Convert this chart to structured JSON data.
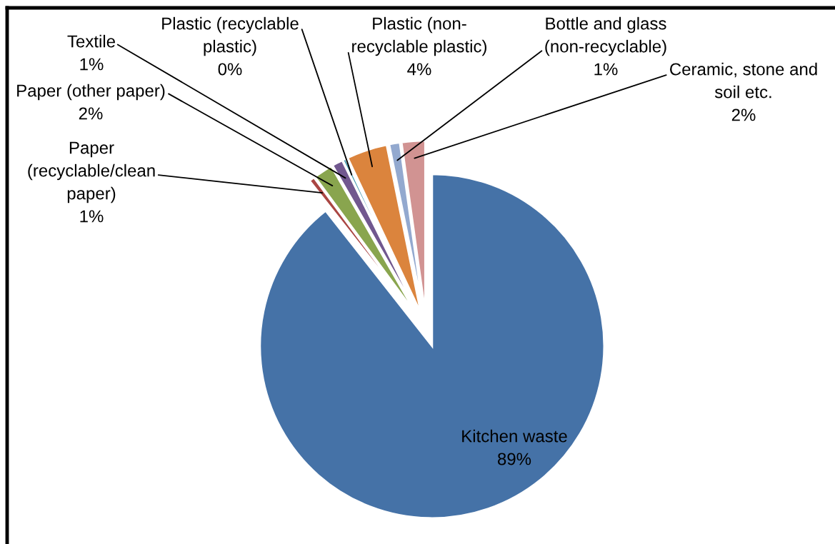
{
  "chart_data": {
    "type": "pie",
    "categories": [
      "Kitchen waste",
      "Paper\n(recyclable/clean\npaper)",
      "Paper (other paper)",
      "Textile",
      "Plastic (recyclable\nplastic)",
      "Plastic (non-\nrecyclable plastic)",
      "Bottle and glass\n(non-recyclable)",
      "Ceramic, stone and\nsoil etc."
    ],
    "values": [
      89.4,
      0.5,
      1.8,
      1.0,
      0.3,
      3.8,
      1.0,
      2.2
    ],
    "value_labels": [
      "89%",
      "1%",
      "2%",
      "1%",
      "0%",
      "4%",
      "1%",
      "2%"
    ],
    "colors": [
      "#4572a7",
      "#aa4643",
      "#89a54e",
      "#71588f",
      "#4198af",
      "#db843d",
      "#93a9cf",
      "#d19392"
    ]
  }
}
